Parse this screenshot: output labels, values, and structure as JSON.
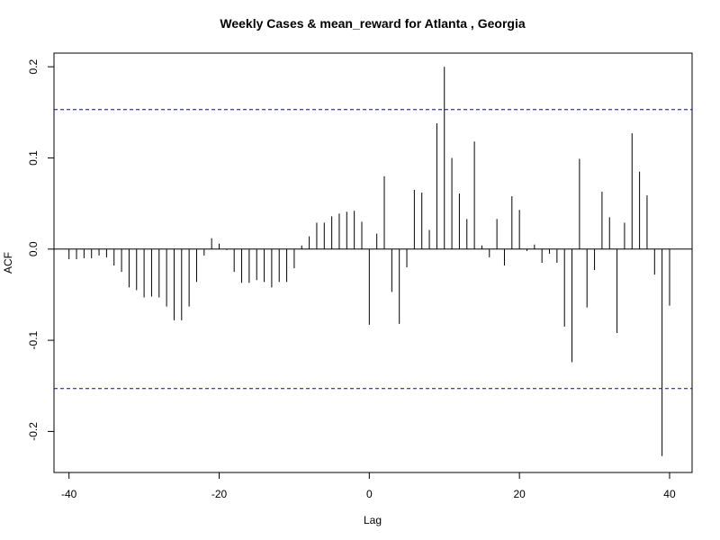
{
  "chart_data": {
    "type": "bar",
    "title": "Weekly Cases & mean_reward for Atlanta , Georgia",
    "xlabel": "Lag",
    "ylabel": "ACF",
    "xlim": [
      -42,
      43
    ],
    "ylim": [
      -0.245,
      0.215
    ],
    "xticks": [
      -40,
      -20,
      0,
      20,
      40
    ],
    "yticks": [
      -0.2,
      -0.1,
      0.0,
      0.1,
      0.2
    ],
    "xtick_labels": [
      "-40",
      "-20",
      "0",
      "20",
      "40"
    ],
    "ytick_labels": [
      "-0.2",
      "-0.1",
      "0.0",
      "0.1",
      "0.2"
    ],
    "confidence_bound": 0.153,
    "lags": [
      -40,
      -39,
      -38,
      -37,
      -36,
      -35,
      -34,
      -33,
      -32,
      -31,
      -30,
      -29,
      -28,
      -27,
      -26,
      -25,
      -24,
      -23,
      -22,
      -21,
      -20,
      -19,
      -18,
      -17,
      -16,
      -15,
      -14,
      -13,
      -12,
      -11,
      -10,
      -9,
      -8,
      -7,
      -6,
      -5,
      -4,
      -3,
      -2,
      -1,
      0,
      1,
      2,
      3,
      4,
      5,
      6,
      7,
      8,
      9,
      10,
      11,
      12,
      13,
      14,
      15,
      16,
      17,
      18,
      19,
      20,
      21,
      22,
      23,
      24,
      25,
      26,
      27,
      28,
      29,
      30,
      31,
      32,
      33,
      34,
      35,
      36,
      37,
      38,
      39,
      40
    ],
    "values": [
      -0.011,
      -0.011,
      -0.01,
      -0.01,
      -0.007,
      -0.009,
      -0.018,
      -0.025,
      -0.042,
      -0.045,
      -0.053,
      -0.052,
      -0.053,
      -0.063,
      -0.078,
      -0.078,
      -0.063,
      -0.036,
      -0.007,
      0.012,
      0.006,
      -0.001,
      -0.025,
      -0.037,
      -0.037,
      -0.034,
      -0.036,
      -0.042,
      -0.036,
      -0.036,
      -0.021,
      0.004,
      0.014,
      0.029,
      0.029,
      0.036,
      0.039,
      0.041,
      0.042,
      0.03,
      -0.083,
      0.017,
      0.08,
      -0.047,
      -0.082,
      -0.02,
      0.065,
      0.062,
      0.021,
      0.138,
      0.2,
      0.1,
      0.061,
      0.033,
      0.118,
      0.004,
      -0.009,
      0.033,
      -0.018,
      0.058,
      0.043,
      -0.002,
      0.005,
      -0.015,
      -0.005,
      -0.015,
      -0.085,
      -0.124,
      0.099,
      -0.064,
      -0.023,
      0.063,
      0.035,
      -0.092,
      0.029,
      0.127,
      0.085,
      0.059,
      -0.028,
      -0.227,
      -0.062
    ],
    "colors": {
      "bars": "#000000",
      "confidence": "#0000cc",
      "zero_line": "#000000"
    },
    "grid": false,
    "legend": "none"
  }
}
